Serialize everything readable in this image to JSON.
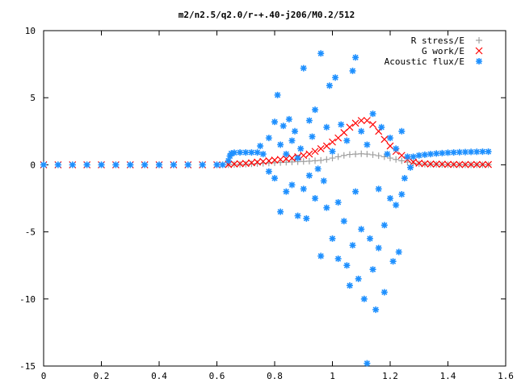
{
  "chart_data": {
    "type": "scatter",
    "title": "m2/n2.5/q2.0/r-+.40-j206/M0.2/512",
    "xlabel": "",
    "ylabel": "",
    "xlim": [
      0,
      1.6
    ],
    "ylim": [
      -15,
      10
    ],
    "x_ticks": [
      "0",
      "0.2",
      "0.4",
      "0.6",
      "0.8",
      "1",
      "1.2",
      "1.4",
      "1.6"
    ],
    "y_ticks": [
      "10",
      "5",
      "0",
      "-5",
      "-10",
      "-15"
    ],
    "legend_position": "top-right",
    "grid": false,
    "series": [
      {
        "name": "R stress/E",
        "marker": "plus",
        "color": "#a0a0a0",
        "points": [
          [
            0.0,
            0
          ],
          [
            0.05,
            0
          ],
          [
            0.1,
            0
          ],
          [
            0.15,
            0
          ],
          [
            0.2,
            0
          ],
          [
            0.25,
            0
          ],
          [
            0.3,
            0
          ],
          [
            0.35,
            0
          ],
          [
            0.4,
            0
          ],
          [
            0.45,
            0
          ],
          [
            0.5,
            0
          ],
          [
            0.55,
            0
          ],
          [
            0.6,
            0
          ],
          [
            0.64,
            0
          ],
          [
            0.66,
            0.02
          ],
          [
            0.68,
            0.03
          ],
          [
            0.7,
            0.05
          ],
          [
            0.72,
            0.07
          ],
          [
            0.74,
            0.09
          ],
          [
            0.76,
            0.11
          ],
          [
            0.78,
            0.13
          ],
          [
            0.8,
            0.15
          ],
          [
            0.82,
            0.17
          ],
          [
            0.84,
            0.19
          ],
          [
            0.86,
            0.21
          ],
          [
            0.88,
            0.23
          ],
          [
            0.9,
            0.25
          ],
          [
            0.92,
            0.27
          ],
          [
            0.94,
            0.3
          ],
          [
            0.96,
            0.33
          ],
          [
            0.98,
            0.4
          ],
          [
            1.0,
            0.5
          ],
          [
            1.02,
            0.6
          ],
          [
            1.04,
            0.7
          ],
          [
            1.06,
            0.77
          ],
          [
            1.08,
            0.8
          ],
          [
            1.1,
            0.82
          ],
          [
            1.12,
            0.8
          ],
          [
            1.14,
            0.75
          ],
          [
            1.16,
            0.68
          ],
          [
            1.18,
            0.6
          ],
          [
            1.2,
            0.5
          ],
          [
            1.22,
            0.4
          ],
          [
            1.24,
            0.3
          ],
          [
            1.26,
            0.2
          ],
          [
            1.28,
            0.12
          ],
          [
            1.3,
            0.08
          ],
          [
            1.32,
            0.05
          ],
          [
            1.34,
            0.04
          ],
          [
            1.36,
            0.03
          ],
          [
            1.38,
            0.02
          ],
          [
            1.4,
            0.01
          ],
          [
            1.42,
            0.01
          ],
          [
            1.44,
            0.0
          ],
          [
            1.46,
            0.0
          ],
          [
            1.48,
            0.0
          ],
          [
            1.5,
            0.0
          ],
          [
            1.52,
            0.0
          ],
          [
            1.54,
            0.0
          ]
        ]
      },
      {
        "name": "G work/E",
        "marker": "cross",
        "color": "#ff0000",
        "points": [
          [
            0.0,
            0
          ],
          [
            0.05,
            0
          ],
          [
            0.1,
            0
          ],
          [
            0.15,
            0
          ],
          [
            0.2,
            0
          ],
          [
            0.25,
            0
          ],
          [
            0.3,
            0
          ],
          [
            0.35,
            0
          ],
          [
            0.4,
            0
          ],
          [
            0.45,
            0
          ],
          [
            0.5,
            0
          ],
          [
            0.55,
            0
          ],
          [
            0.6,
            0
          ],
          [
            0.64,
            0.02
          ],
          [
            0.66,
            0.06
          ],
          [
            0.68,
            0.08
          ],
          [
            0.7,
            0.1
          ],
          [
            0.72,
            0.15
          ],
          [
            0.74,
            0.2
          ],
          [
            0.76,
            0.25
          ],
          [
            0.78,
            0.3
          ],
          [
            0.8,
            0.35
          ],
          [
            0.82,
            0.4
          ],
          [
            0.84,
            0.45
          ],
          [
            0.86,
            0.5
          ],
          [
            0.88,
            0.6
          ],
          [
            0.9,
            0.7
          ],
          [
            0.92,
            0.8
          ],
          [
            0.94,
            1.0
          ],
          [
            0.96,
            1.2
          ],
          [
            0.98,
            1.4
          ],
          [
            1.0,
            1.7
          ],
          [
            1.02,
            2.0
          ],
          [
            1.04,
            2.4
          ],
          [
            1.06,
            2.8
          ],
          [
            1.08,
            3.1
          ],
          [
            1.1,
            3.3
          ],
          [
            1.12,
            3.3
          ],
          [
            1.14,
            3.0
          ],
          [
            1.16,
            2.5
          ],
          [
            1.18,
            1.9
          ],
          [
            1.2,
            1.4
          ],
          [
            1.22,
            1.0
          ],
          [
            1.24,
            0.7
          ],
          [
            1.26,
            0.4
          ],
          [
            1.28,
            0.2
          ],
          [
            1.3,
            0.12
          ],
          [
            1.32,
            0.08
          ],
          [
            1.34,
            0.06
          ],
          [
            1.36,
            0.05
          ],
          [
            1.38,
            0.04
          ],
          [
            1.4,
            0.03
          ],
          [
            1.42,
            0.03
          ],
          [
            1.44,
            0.02
          ],
          [
            1.46,
            0.02
          ],
          [
            1.48,
            0.02
          ],
          [
            1.5,
            0.02
          ],
          [
            1.52,
            0.02
          ],
          [
            1.54,
            0.02
          ]
        ]
      },
      {
        "name": "Acoustic flux/E",
        "marker": "star",
        "color": "#1e90ff",
        "points": [
          [
            0.0,
            0
          ],
          [
            0.05,
            0
          ],
          [
            0.1,
            0
          ],
          [
            0.15,
            0
          ],
          [
            0.2,
            0
          ],
          [
            0.25,
            0
          ],
          [
            0.3,
            0
          ],
          [
            0.35,
            0
          ],
          [
            0.4,
            0
          ],
          [
            0.45,
            0
          ],
          [
            0.5,
            0
          ],
          [
            0.55,
            0
          ],
          [
            0.6,
            0
          ],
          [
            0.62,
            0
          ],
          [
            0.64,
            0.3
          ],
          [
            0.645,
            0.65
          ],
          [
            0.65,
            0.85
          ],
          [
            0.66,
            0.9
          ],
          [
            0.68,
            0.92
          ],
          [
            0.7,
            0.92
          ],
          [
            0.72,
            0.92
          ],
          [
            0.74,
            0.92
          ],
          [
            0.75,
            1.4
          ],
          [
            0.76,
            0.8
          ],
          [
            0.78,
            2.0
          ],
          [
            0.78,
            -0.5
          ],
          [
            0.8,
            3.2
          ],
          [
            0.8,
            -1.0
          ],
          [
            0.81,
            5.2
          ],
          [
            0.82,
            -3.5
          ],
          [
            0.82,
            1.5
          ],
          [
            0.83,
            2.9
          ],
          [
            0.84,
            -2.0
          ],
          [
            0.84,
            0.8
          ],
          [
            0.85,
            3.4
          ],
          [
            0.86,
            -1.5
          ],
          [
            0.86,
            1.8
          ],
          [
            0.87,
            2.5
          ],
          [
            0.88,
            -3.8
          ],
          [
            0.88,
            0.5
          ],
          [
            0.89,
            1.2
          ],
          [
            0.9,
            7.2
          ],
          [
            0.9,
            -1.8
          ],
          [
            0.91,
            -4.0
          ],
          [
            0.92,
            3.3
          ],
          [
            0.92,
            -0.8
          ],
          [
            0.93,
            2.1
          ],
          [
            0.94,
            -2.5
          ],
          [
            0.94,
            4.1
          ],
          [
            0.95,
            -0.3
          ],
          [
            0.96,
            8.3
          ],
          [
            0.96,
            -6.8
          ],
          [
            0.97,
            -1.2
          ],
          [
            0.98,
            2.8
          ],
          [
            0.98,
            -3.2
          ],
          [
            0.99,
            5.9
          ],
          [
            1.0,
            -5.5
          ],
          [
            1.0,
            1.0
          ],
          [
            1.01,
            6.5
          ],
          [
            1.02,
            -2.8
          ],
          [
            1.02,
            -7.0
          ],
          [
            1.03,
            3.0
          ],
          [
            1.04,
            -4.2
          ],
          [
            1.05,
            1.8
          ],
          [
            1.05,
            -7.5
          ],
          [
            1.06,
            -9.0
          ],
          [
            1.07,
            7.0
          ],
          [
            1.07,
            -6.0
          ],
          [
            1.08,
            -2.0
          ],
          [
            1.08,
            8.0
          ],
          [
            1.09,
            -8.5
          ],
          [
            1.1,
            2.5
          ],
          [
            1.1,
            -4.8
          ],
          [
            1.11,
            -10.0
          ],
          [
            1.12,
            -14.8
          ],
          [
            1.12,
            1.5
          ],
          [
            1.13,
            -5.5
          ],
          [
            1.14,
            -7.8
          ],
          [
            1.14,
            3.8
          ],
          [
            1.15,
            -10.8
          ],
          [
            1.16,
            -6.2
          ],
          [
            1.16,
            -1.8
          ],
          [
            1.17,
            2.8
          ],
          [
            1.18,
            -4.5
          ],
          [
            1.18,
            -9.5
          ],
          [
            1.19,
            0.8
          ],
          [
            1.2,
            -2.5
          ],
          [
            1.2,
            2.0
          ],
          [
            1.21,
            -7.2
          ],
          [
            1.22,
            -3.0
          ],
          [
            1.22,
            1.2
          ],
          [
            1.23,
            -6.5
          ],
          [
            1.24,
            -2.2
          ],
          [
            1.24,
            2.5
          ],
          [
            1.25,
            -1.0
          ],
          [
            1.26,
            0.6
          ],
          [
            1.27,
            -0.2
          ],
          [
            1.28,
            0.6
          ],
          [
            1.3,
            0.7
          ],
          [
            1.32,
            0.75
          ],
          [
            1.34,
            0.8
          ],
          [
            1.36,
            0.84
          ],
          [
            1.38,
            0.87
          ],
          [
            1.4,
            0.9
          ],
          [
            1.42,
            0.92
          ],
          [
            1.44,
            0.94
          ],
          [
            1.46,
            0.95
          ],
          [
            1.48,
            0.96
          ],
          [
            1.5,
            0.97
          ],
          [
            1.52,
            0.98
          ],
          [
            1.54,
            0.98
          ]
        ]
      }
    ]
  }
}
